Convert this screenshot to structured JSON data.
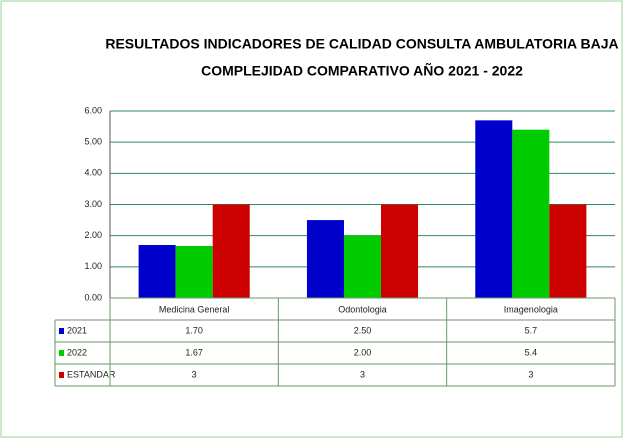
{
  "chart_data": {
    "type": "bar",
    "title": [
      "RESULTADOS INDICADORES DE CALIDAD CONSULTA AMBULATORIA BAJA",
      "COMPLEJIDAD COMPARATIVO AÑO 2021 - 2022"
    ],
    "categories": [
      "Medicina General",
      "Odontologia",
      "Imagenologia"
    ],
    "series": [
      {
        "name": "2021",
        "color": "#0000cc",
        "values": [
          1.7,
          2.5,
          5.7
        ],
        "value_labels": [
          "1.70",
          "2.50",
          "5.7"
        ]
      },
      {
        "name": "2022",
        "color": "#00cc00",
        "values": [
          1.67,
          2.0,
          5.4
        ],
        "value_labels": [
          "1.67",
          "2.00",
          "5.4"
        ]
      },
      {
        "name": "ESTANDAR",
        "color": "#cc0000",
        "values": [
          3,
          3,
          3
        ]
      }
    ],
    "ylim": [
      0,
      6
    ],
    "yticks": [
      {
        "value": 0,
        "label": "0.00"
      },
      {
        "value": 1,
        "label": "1.00"
      },
      {
        "value": 2,
        "label": "2.00"
      },
      {
        "value": 3,
        "label": "3.00"
      },
      {
        "value": 4,
        "label": "4.00"
      },
      {
        "value": 5,
        "label": "5.00"
      },
      {
        "value": 6,
        "label": "6.00"
      }
    ],
    "grid": true,
    "grid_color": "#2e8b57"
  }
}
